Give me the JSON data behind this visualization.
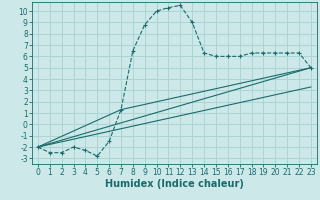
{
  "background_color": "#cce8e8",
  "grid_color": "#add4d4",
  "line_color": "#1a6b6b",
  "xlabel": "Humidex (Indice chaleur)",
  "xlabel_fontsize": 7,
  "tick_fontsize": 5.5,
  "xlim": [
    -0.5,
    23.5
  ],
  "ylim": [
    -3.5,
    10.8
  ],
  "yticks": [
    -3,
    -2,
    -1,
    0,
    1,
    2,
    3,
    4,
    5,
    6,
    7,
    8,
    9,
    10
  ],
  "xticks": [
    0,
    1,
    2,
    3,
    4,
    5,
    6,
    7,
    8,
    9,
    10,
    11,
    12,
    13,
    14,
    15,
    16,
    17,
    18,
    19,
    20,
    21,
    22,
    23
  ],
  "curve1_x": [
    0,
    1,
    2,
    3,
    4,
    5,
    6,
    7,
    8,
    9,
    10,
    11,
    12,
    13,
    14,
    15,
    16,
    17,
    18,
    19,
    20,
    21,
    22,
    23
  ],
  "curve1_y": [
    -2.0,
    -2.5,
    -2.5,
    -2.0,
    -2.3,
    -2.8,
    -1.5,
    1.3,
    6.5,
    8.8,
    10.0,
    10.3,
    10.5,
    9.0,
    6.3,
    6.0,
    6.0,
    6.0,
    6.3,
    6.3,
    6.3,
    6.3,
    6.3,
    5.0
  ],
  "line1_x": [
    0,
    23
  ],
  "line1_y": [
    -2.0,
    5.0
  ],
  "line2_x": [
    0,
    23
  ],
  "line2_y": [
    -2.0,
    3.3
  ],
  "line3_x": [
    0,
    7,
    23
  ],
  "line3_y": [
    -2.0,
    1.3,
    5.0
  ]
}
